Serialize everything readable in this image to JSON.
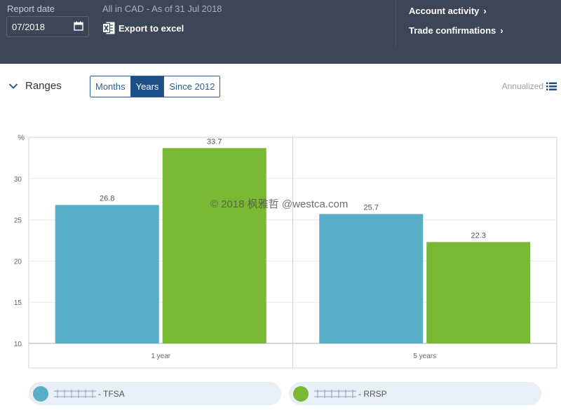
{
  "header": {
    "report_date_label": "Report date",
    "report_date_value": "07/2018",
    "currency_note": "All in CAD - As of 31 Jul 2018",
    "export_label": "Export to excel",
    "links": [
      {
        "label": "Account activity"
      },
      {
        "label": "Trade confirmations"
      }
    ]
  },
  "controls": {
    "ranges_label": "Ranges",
    "segments": [
      {
        "label": "Months",
        "active": false
      },
      {
        "label": "Years",
        "active": true
      },
      {
        "label": "Since 2012",
        "active": false
      }
    ],
    "annualized_label": "Annualized"
  },
  "watermark": "© 2018 枫雅哲 @westca.com",
  "colors": {
    "header_bg": "#3d4656",
    "tfsa": "#58aec6",
    "rrsp": "#79b833",
    "active_segment": "#1d4f86"
  },
  "legend": [
    {
      "name": "- TFSA",
      "color": "#58aec6"
    },
    {
      "name": "- RRSP",
      "color": "#79b833"
    }
  ],
  "chart_data": {
    "type": "bar",
    "ylabel": "%",
    "ylim": [
      10,
      35
    ],
    "yticks": [
      10,
      15,
      20,
      25,
      30
    ],
    "categories": [
      "1 year",
      "5 years"
    ],
    "series": [
      {
        "name": "TFSA",
        "values": [
          26.8,
          25.7
        ],
        "color": "#58aec6"
      },
      {
        "name": "RRSP",
        "values": [
          33.7,
          22.3
        ],
        "color": "#79b833"
      }
    ],
    "grid": true,
    "legend_position": "bottom"
  }
}
